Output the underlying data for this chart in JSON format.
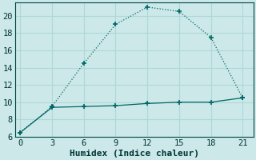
{
  "title": "",
  "xlabel": "Humidex (Indice chaleur)",
  "bg_color": "#cce8e8",
  "grid_color": "#b0d8d8",
  "line_color": "#006666",
  "line1_x": [
    0,
    3,
    6,
    9,
    12,
    15,
    18,
    21
  ],
  "line1_y": [
    6.5,
    9.5,
    14.5,
    19.0,
    21.0,
    20.5,
    17.5,
    10.5
  ],
  "line2_x": [
    0,
    3,
    6,
    9,
    12,
    15,
    18,
    21
  ],
  "line2_y": [
    6.5,
    9.4,
    9.5,
    9.6,
    9.85,
    10.0,
    10.0,
    10.5
  ],
  "xlim": [
    -0.5,
    22
  ],
  "ylim": [
    6,
    21.5
  ],
  "xticks": [
    0,
    3,
    6,
    9,
    12,
    15,
    18,
    21
  ],
  "yticks": [
    6,
    8,
    10,
    12,
    14,
    16,
    18,
    20
  ],
  "marker": "+",
  "marker_size": 5,
  "marker_linewidth": 1.2,
  "line_width": 0.9,
  "font_family": "monospace",
  "xlabel_fontsize": 8,
  "tick_fontsize": 7.5
}
